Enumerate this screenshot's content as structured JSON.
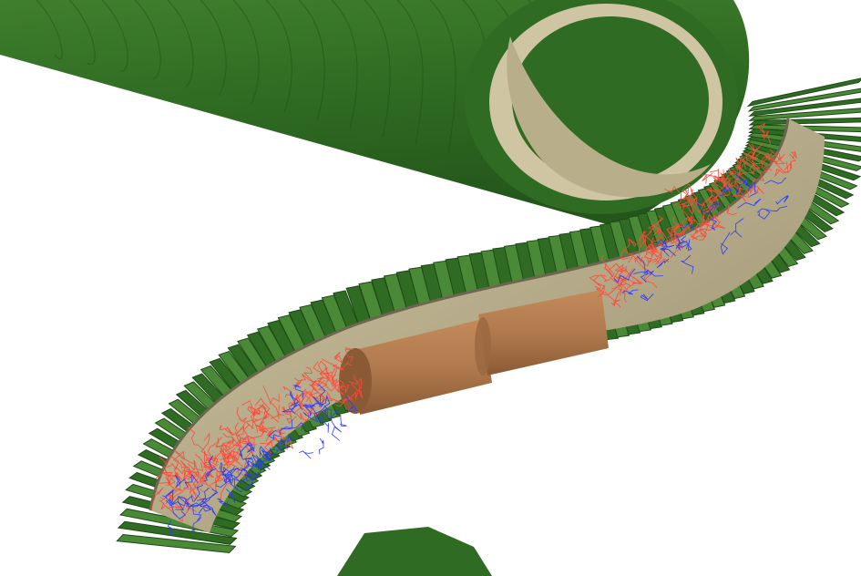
{
  "scene": {
    "subject": "curved-tunnel-cutaway",
    "colors": {
      "background": "#ffffff",
      "outer_green": "#2f6b22",
      "outer_green_light": "#4a8a36",
      "outer_green_dark": "#1f4a17",
      "rib_edge": "#8fbf6a",
      "liner_tan": "#b9ae8a",
      "liner_tan_light": "#d8cfae",
      "liner_tan_dark": "#8e8463",
      "pipe_copper": "#b07a4e",
      "pipe_copper_dark": "#8a5a35",
      "track_red": "#ff4a3a",
      "track_blue": "#2a3cff"
    }
  }
}
